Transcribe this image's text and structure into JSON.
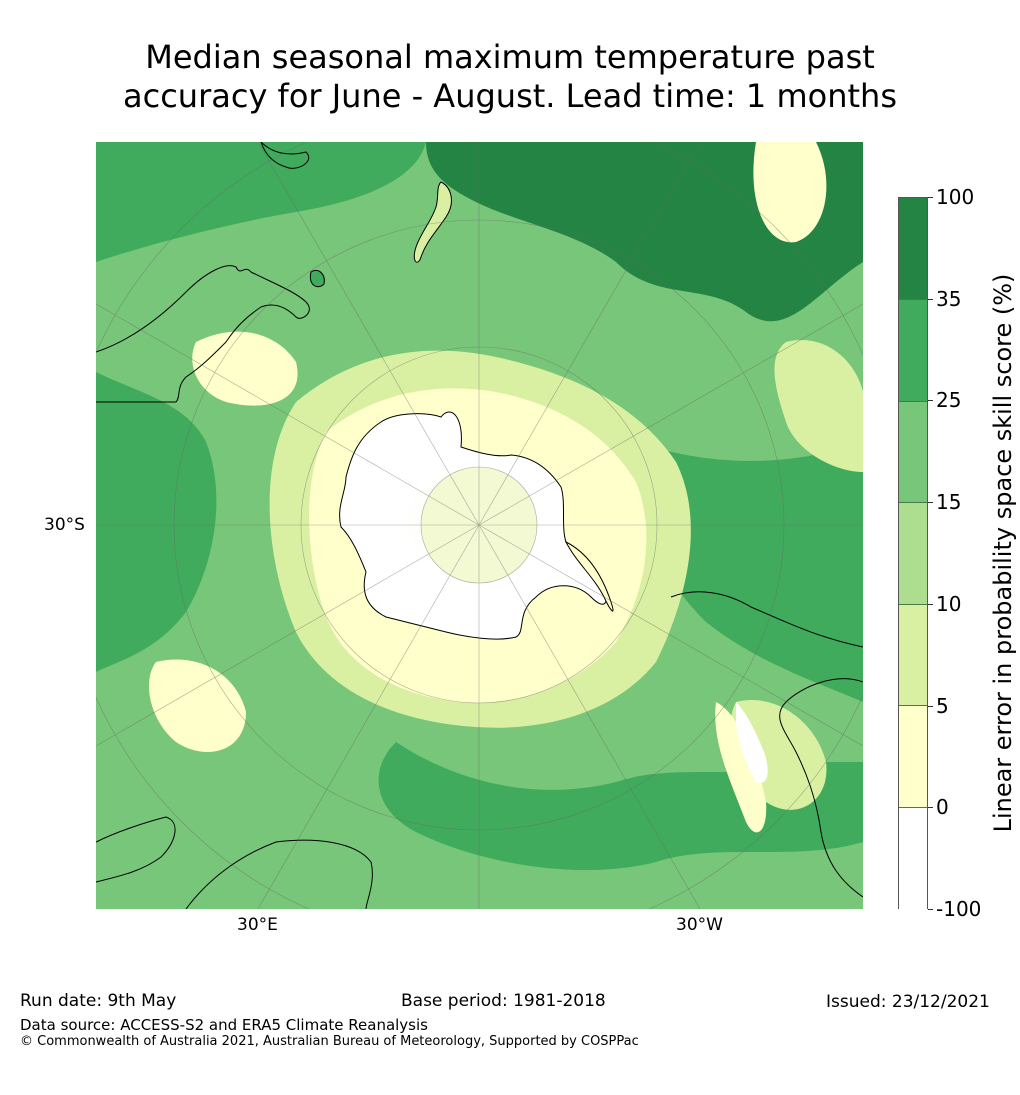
{
  "title": {
    "line1": "Median seasonal maximum temperature past",
    "line2": "accuracy for June - August. Lead time: 1 months"
  },
  "map": {
    "projection": "south-polar-stereographic",
    "lat_labels": [
      "30°S"
    ],
    "lon_labels": [
      "30°E",
      "30°W"
    ]
  },
  "colorbar": {
    "label": "Linear error in probability space skill score (%)",
    "ticks": [
      "100",
      "35",
      "25",
      "15",
      "10",
      "5",
      "0",
      "-100"
    ],
    "bins": [
      {
        "range": "35 to 100",
        "color": "#238443"
      },
      {
        "range": "25 to 35",
        "color": "#41ab5d"
      },
      {
        "range": "15 to 25",
        "color": "#78c679"
      },
      {
        "range": "10 to 15",
        "color": "#addd8e"
      },
      {
        "range": "5 to 10",
        "color": "#d9f0a3"
      },
      {
        "range": "0 to 5",
        "color": "#ffffcc"
      },
      {
        "range": "-100 to 0",
        "color": "#ffffff"
      }
    ]
  },
  "footer": {
    "run_date": "Run date: 9th May",
    "base_period": "Base period: 1981-2018",
    "issued": "Issued: 23/12/2021",
    "data_source": "Data source: ACCESS-S2 and ERA5 Climate Reanalysis",
    "copyright": "© Commonwealth of Australia 2021, Australian Bureau of Meteorology, Supported by COSPPac"
  }
}
